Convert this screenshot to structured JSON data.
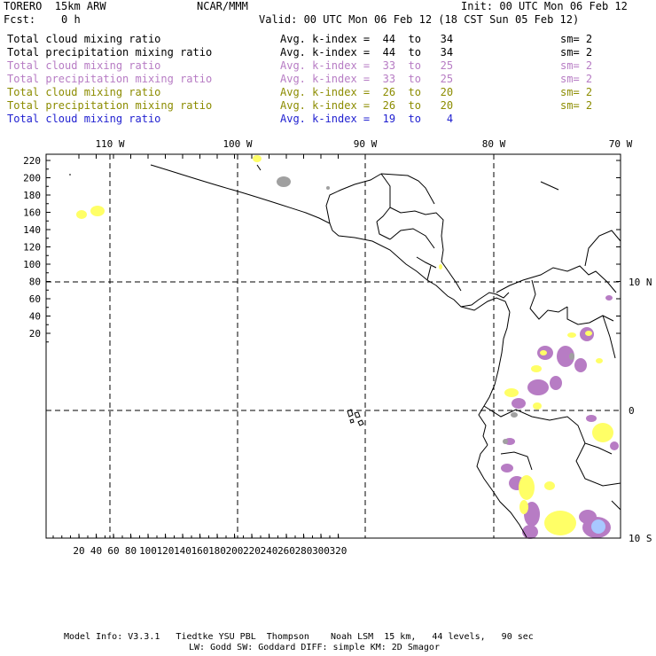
{
  "header": {
    "model": "TORERO  15km ARW",
    "org": "NCAR/MMM",
    "init": "Init: 00 UTC Mon 06 Feb 12",
    "fcst": "Fcst:    0 h",
    "valid": "Valid: 00 UTC Mon 06 Feb 12 (18 CST Sun 05 Feb 12)"
  },
  "legend": [
    {
      "field": "Total cloud mixing ratio",
      "kindex": "Avg. k-index =  44  to   34",
      "sm": "sm= 2",
      "color": "#000000"
    },
    {
      "field": "Total precipitation mixing ratio",
      "kindex": "Avg. k-index =  44  to   34",
      "sm": "sm= 2",
      "color": "#000000"
    },
    {
      "field": "Total cloud mixing ratio",
      "kindex": "Avg. k-index =  33  to   25",
      "sm": "sm= 2",
      "color": "#b77cc4"
    },
    {
      "field": "Total precipitation mixing ratio",
      "kindex": "Avg. k-index =  33  to   25",
      "sm": "sm= 2",
      "color": "#b77cc4"
    },
    {
      "field": "Total cloud mixing ratio",
      "kindex": "Avg. k-index =  26  to   20",
      "sm": "sm= 2",
      "color": "#8c8c00"
    },
    {
      "field": "Total precipitation mixing ratio",
      "kindex": "Avg. k-index =  26  to   20",
      "sm": "sm= 2",
      "color": "#8c8c00"
    },
    {
      "field": "Total cloud mixing ratio",
      "kindex": "Avg. k-index =  19  to    4",
      "sm": "",
      "color": "#1f1fd0"
    }
  ],
  "axes": {
    "top_lon": [
      "110 W",
      "100 W",
      "90 W",
      "80 W",
      "70 W"
    ],
    "right_lat": [
      "10 N",
      "0",
      "10 S"
    ],
    "left_y": [
      "220",
      "200",
      "180",
      "160",
      "140",
      "120",
      "100",
      "80",
      "60",
      "40",
      "20"
    ],
    "bottom_x": [
      "20",
      "40",
      "60",
      "80",
      "100",
      "120",
      "140",
      "160",
      "180",
      "200",
      "220",
      "240",
      "260",
      "280",
      "300",
      "320"
    ]
  },
  "footer": {
    "line1": "Model Info: V3.3.1   Tiedtke YSU PBL  Thompson    Noah LSM  15 km,   44 levels,   90 sec",
    "line2": "LW: Godd SW: Goddard DIFF: simple KM: 2D Smagor"
  },
  "colors": {
    "purple": "#b77cc4",
    "yellow": "#ffff66",
    "gray": "#a0a0a0",
    "blue": "#a8c8ff"
  }
}
